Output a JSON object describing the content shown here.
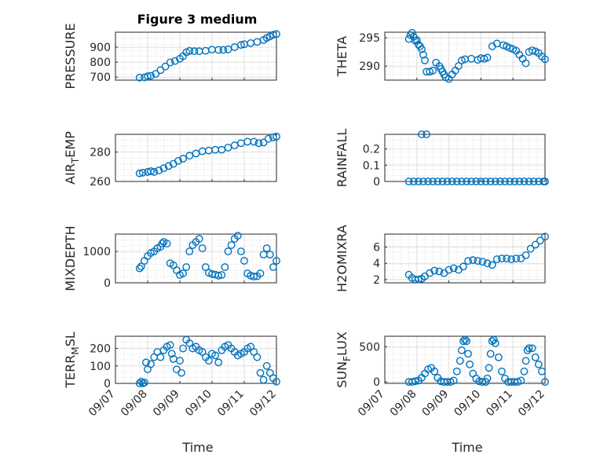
{
  "figure": {
    "title": "Figure 3 medium",
    "xlabel": "Time",
    "colors": {
      "marker": "#0072BD",
      "axis": "#262626",
      "grid": "#DFDFDF",
      "minor_grid": "#C8C8C8"
    },
    "x_ticks": [
      "09/07",
      "09/08",
      "09/09",
      "09/10",
      "09/11",
      "09/12"
    ]
  },
  "chart_data": [
    {
      "type": "scatter",
      "id": "pressure",
      "ylabel": "PRESSURE",
      "yticks": [
        700,
        800,
        900
      ],
      "ylim": [
        680,
        1000
      ],
      "grid": true,
      "x_dates": [
        "09/07",
        "09/12"
      ],
      "x": [
        0.75,
        0.9,
        1.0,
        1.1,
        1.25,
        1.4,
        1.55,
        1.7,
        1.85,
        2.0,
        2.1,
        2.2,
        2.3,
        2.45,
        2.6,
        2.8,
        3.0,
        3.2,
        3.35,
        3.5,
        3.7,
        3.9,
        4.0,
        4.2,
        4.4,
        4.6,
        4.7,
        4.8,
        4.9,
        5.0
      ],
      "y": [
        697,
        698,
        706,
        709,
        722,
        747,
        771,
        798,
        808,
        823,
        840,
        866,
        875,
        873,
        873,
        876,
        884,
        882,
        882,
        886,
        900,
        915,
        920,
        927,
        935,
        948,
        962,
        972,
        983,
        988
      ]
    },
    {
      "type": "scatter",
      "id": "theta",
      "ylabel": "THETA",
      "yticks": [
        290,
        295
      ],
      "ylim": [
        287.5,
        296
      ],
      "grid": true,
      "x": [
        0.75,
        0.8,
        0.85,
        0.9,
        0.95,
        1.0,
        1.05,
        1.1,
        1.15,
        1.2,
        1.25,
        1.3,
        1.4,
        1.5,
        1.6,
        1.7,
        1.75,
        1.8,
        1.85,
        1.9,
        2.0,
        2.1,
        2.2,
        2.3,
        2.4,
        2.5,
        2.7,
        2.9,
        3.0,
        3.1,
        3.2,
        3.35,
        3.5,
        3.7,
        3.8,
        3.9,
        4.0,
        4.1,
        4.2,
        4.3,
        4.4,
        4.5,
        4.6,
        4.7,
        4.8,
        4.9,
        5.0
      ],
      "y": [
        294.8,
        295.5,
        295.9,
        295.2,
        294.5,
        294.6,
        293.8,
        293.5,
        293.0,
        292.0,
        291.0,
        289.0,
        289.0,
        289.2,
        290.6,
        290.0,
        289.5,
        289.0,
        288.5,
        288.0,
        287.7,
        288.5,
        289.2,
        290.0,
        291.0,
        291.2,
        291.3,
        291.1,
        291.4,
        291.3,
        291.5,
        293.5,
        294.0,
        293.7,
        293.5,
        293.2,
        293.0,
        292.7,
        292.0,
        291.3,
        290.5,
        292.5,
        292.8,
        292.6,
        292.3,
        291.7,
        291.2
      ]
    },
    {
      "type": "scatter",
      "id": "air_temp",
      "ylabel": "AIR",
      "ylabel_sub": "T",
      "ylabel_tail": "EMP",
      "yticks": [
        260,
        280
      ],
      "ylim": [
        260,
        292
      ],
      "grid": true,
      "x": [
        0.75,
        0.85,
        1.0,
        1.1,
        1.2,
        1.35,
        1.5,
        1.65,
        1.8,
        1.95,
        2.1,
        2.3,
        2.5,
        2.7,
        2.9,
        3.1,
        3.3,
        3.5,
        3.7,
        3.9,
        4.1,
        4.3,
        4.45,
        4.6,
        4.75,
        4.9,
        5.0
      ],
      "y": [
        265.5,
        266,
        266.5,
        267,
        266.5,
        267.5,
        269,
        270.5,
        272,
        274,
        275.5,
        277.5,
        279,
        280.5,
        281,
        281.5,
        281.5,
        283,
        284.5,
        286,
        287,
        287,
        286,
        286.5,
        289,
        290,
        290.5
      ]
    },
    {
      "type": "scatter",
      "id": "rainfall",
      "ylabel": "RAINFALL",
      "yticks": [
        0,
        0.1,
        0.2
      ],
      "ylim": [
        0,
        0.29
      ],
      "grid": true,
      "x": [
        0.75,
        0.9,
        1.05,
        1.2,
        1.35,
        1.5,
        1.65,
        1.8,
        1.95,
        2.1,
        2.25,
        2.4,
        2.55,
        2.7,
        2.85,
        3.0,
        3.15,
        3.3,
        3.45,
        3.6,
        3.75,
        3.9,
        4.05,
        4.2,
        4.35,
        4.5,
        4.65,
        4.8,
        4.95,
        5.0,
        1.15,
        1.3
      ],
      "y": [
        0,
        0,
        0,
        0,
        0,
        0,
        0,
        0,
        0,
        0,
        0,
        0,
        0,
        0,
        0,
        0,
        0,
        0,
        0,
        0,
        0,
        0,
        0,
        0,
        0,
        0,
        0,
        0,
        0,
        0,
        0.29,
        0.29
      ]
    },
    {
      "type": "scatter",
      "id": "mixdepth",
      "ylabel": "MIXDEPTH",
      "yticks": [
        0,
        1000
      ],
      "ylim": [
        0,
        1550
      ],
      "grid": true,
      "x": [
        0.75,
        0.8,
        0.9,
        1.0,
        1.1,
        1.2,
        1.3,
        1.4,
        1.45,
        1.5,
        1.6,
        1.7,
        1.8,
        1.9,
        2.0,
        2.1,
        2.2,
        2.3,
        2.4,
        2.5,
        2.6,
        2.7,
        2.8,
        2.9,
        3.0,
        3.1,
        3.2,
        3.3,
        3.4,
        3.5,
        3.6,
        3.7,
        3.8,
        3.9,
        4.0,
        4.1,
        4.2,
        4.3,
        4.4,
        4.5,
        4.6,
        4.7,
        4.8,
        4.9,
        5.0
      ],
      "y": [
        460,
        520,
        700,
        850,
        950,
        1000,
        1100,
        1150,
        1250,
        1300,
        1250,
        620,
        560,
        400,
        250,
        300,
        500,
        1000,
        1200,
        1300,
        1400,
        1100,
        500,
        320,
        280,
        260,
        230,
        250,
        500,
        1000,
        1200,
        1400,
        1500,
        1000,
        700,
        300,
        230,
        200,
        210,
        300,
        900,
        1100,
        900,
        500,
        700
      ]
    },
    {
      "type": "scatter",
      "id": "h2omixra",
      "ylabel": "H2OMIXRA",
      "yticks": [
        2,
        4,
        6
      ],
      "ylim": [
        1.6,
        7.6
      ],
      "grid": true,
      "x": [
        0.75,
        0.85,
        0.95,
        1.05,
        1.15,
        1.25,
        1.4,
        1.55,
        1.7,
        1.85,
        2.0,
        2.15,
        2.3,
        2.45,
        2.6,
        2.75,
        2.9,
        3.05,
        3.2,
        3.35,
        3.5,
        3.65,
        3.8,
        3.95,
        4.1,
        4.25,
        4.4,
        4.55,
        4.7,
        4.85,
        5.0
      ],
      "y": [
        2.6,
        2.2,
        2.0,
        2.0,
        2.1,
        2.4,
        2.8,
        3.1,
        3.0,
        2.8,
        3.2,
        3.4,
        3.2,
        3.6,
        4.3,
        4.4,
        4.3,
        4.2,
        4.0,
        3.8,
        4.5,
        4.6,
        4.6,
        4.5,
        4.6,
        4.6,
        5.0,
        5.8,
        6.3,
        6.8,
        7.3
      ]
    },
    {
      "type": "scatter",
      "id": "terr_msl",
      "ylabel": "TERR",
      "ylabel_sub": "M",
      "ylabel_tail": "SL",
      "yticks": [
        0,
        100,
        200
      ],
      "ylim": [
        0,
        270
      ],
      "grid": true,
      "x": [
        0.75,
        0.8,
        0.85,
        0.9,
        0.95,
        1.0,
        1.1,
        1.2,
        1.3,
        1.4,
        1.5,
        1.6,
        1.7,
        1.75,
        1.8,
        1.9,
        2.0,
        2.05,
        2.1,
        2.2,
        2.3,
        2.4,
        2.5,
        2.6,
        2.7,
        2.8,
        2.9,
        3.0,
        3.1,
        3.2,
        3.3,
        3.4,
        3.5,
        3.6,
        3.7,
        3.8,
        3.9,
        4.0,
        4.1,
        4.2,
        4.3,
        4.4,
        4.5,
        4.6,
        4.7,
        4.8,
        4.9,
        5.0
      ],
      "y": [
        0,
        10,
        0,
        5,
        120,
        80,
        110,
        150,
        180,
        150,
        190,
        210,
        220,
        170,
        140,
        80,
        130,
        60,
        200,
        250,
        230,
        200,
        210,
        190,
        180,
        150,
        130,
        170,
        160,
        120,
        190,
        210,
        220,
        200,
        180,
        160,
        170,
        180,
        200,
        210,
        180,
        150,
        60,
        20,
        100,
        60,
        30,
        10
      ]
    },
    {
      "type": "scatter",
      "id": "sun_flux",
      "ylabel": "SUN",
      "ylabel_sub": "F",
      "ylabel_tail": "LUX",
      "yticks": [
        0,
        500
      ],
      "ylim": [
        -20,
        650
      ],
      "grid": true,
      "x": [
        0.75,
        0.85,
        0.95,
        1.05,
        1.15,
        1.25,
        1.35,
        1.45,
        1.55,
        1.65,
        1.75,
        1.85,
        1.95,
        2.05,
        2.15,
        2.25,
        2.35,
        2.4,
        2.45,
        2.5,
        2.55,
        2.6,
        2.65,
        2.75,
        2.85,
        2.95,
        3.05,
        3.15,
        3.2,
        3.25,
        3.3,
        3.35,
        3.4,
        3.45,
        3.55,
        3.65,
        3.75,
        3.85,
        3.95,
        4.05,
        4.15,
        4.25,
        4.35,
        4.4,
        4.45,
        4.5,
        4.6,
        4.7,
        4.8,
        4.9,
        5.0
      ],
      "y": [
        0,
        0,
        10,
        20,
        60,
        120,
        180,
        200,
        150,
        60,
        10,
        0,
        0,
        0,
        20,
        150,
        300,
        450,
        580,
        600,
        580,
        400,
        250,
        120,
        50,
        10,
        0,
        0,
        50,
        200,
        400,
        580,
        600,
        550,
        350,
        150,
        50,
        0,
        0,
        0,
        0,
        20,
        150,
        300,
        450,
        480,
        480,
        350,
        250,
        150,
        0
      ]
    }
  ]
}
